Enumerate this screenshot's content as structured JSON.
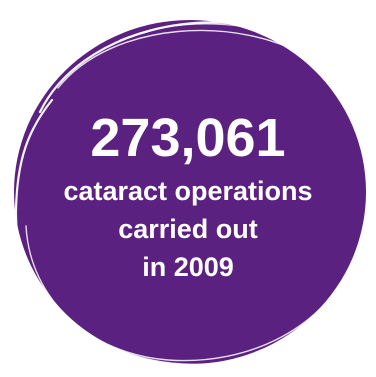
{
  "colors": {
    "circle_fill": "#5b2181",
    "circle_edge": "#6a2a93",
    "sketch_stroke": "#ffffff",
    "text": "#ffffff",
    "background": "#ffffff"
  },
  "stat": {
    "number": "273,061",
    "caption_lines": [
      "cataract operations",
      "carried out",
      "in 2009"
    ]
  }
}
